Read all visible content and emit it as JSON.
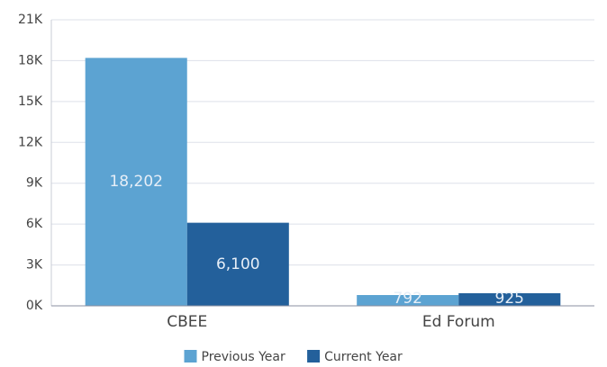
{
  "chart_data": {
    "type": "bar",
    "categories": [
      "CBEE",
      "Ed Forum"
    ],
    "series": [
      {
        "name": "Previous Year",
        "color": "#5ca3d2",
        "values": [
          18202,
          792
        ],
        "value_labels": [
          "18,202",
          "792"
        ]
      },
      {
        "name": "Current Year",
        "color": "#23609b",
        "values": [
          6100,
          925
        ],
        "value_labels": [
          "6,100",
          "925"
        ]
      }
    ],
    "ylim": [
      0,
      21000
    ],
    "yticks": [
      {
        "value": 0,
        "label": "0K"
      },
      {
        "value": 3000,
        "label": "3K"
      },
      {
        "value": 6000,
        "label": "6K"
      },
      {
        "value": 9000,
        "label": "9K"
      },
      {
        "value": 12000,
        "label": "12K"
      },
      {
        "value": 15000,
        "label": "15K"
      },
      {
        "value": 18000,
        "label": "18K"
      },
      {
        "value": 21000,
        "label": "21K"
      }
    ],
    "grid": true,
    "legend": "bottom"
  }
}
